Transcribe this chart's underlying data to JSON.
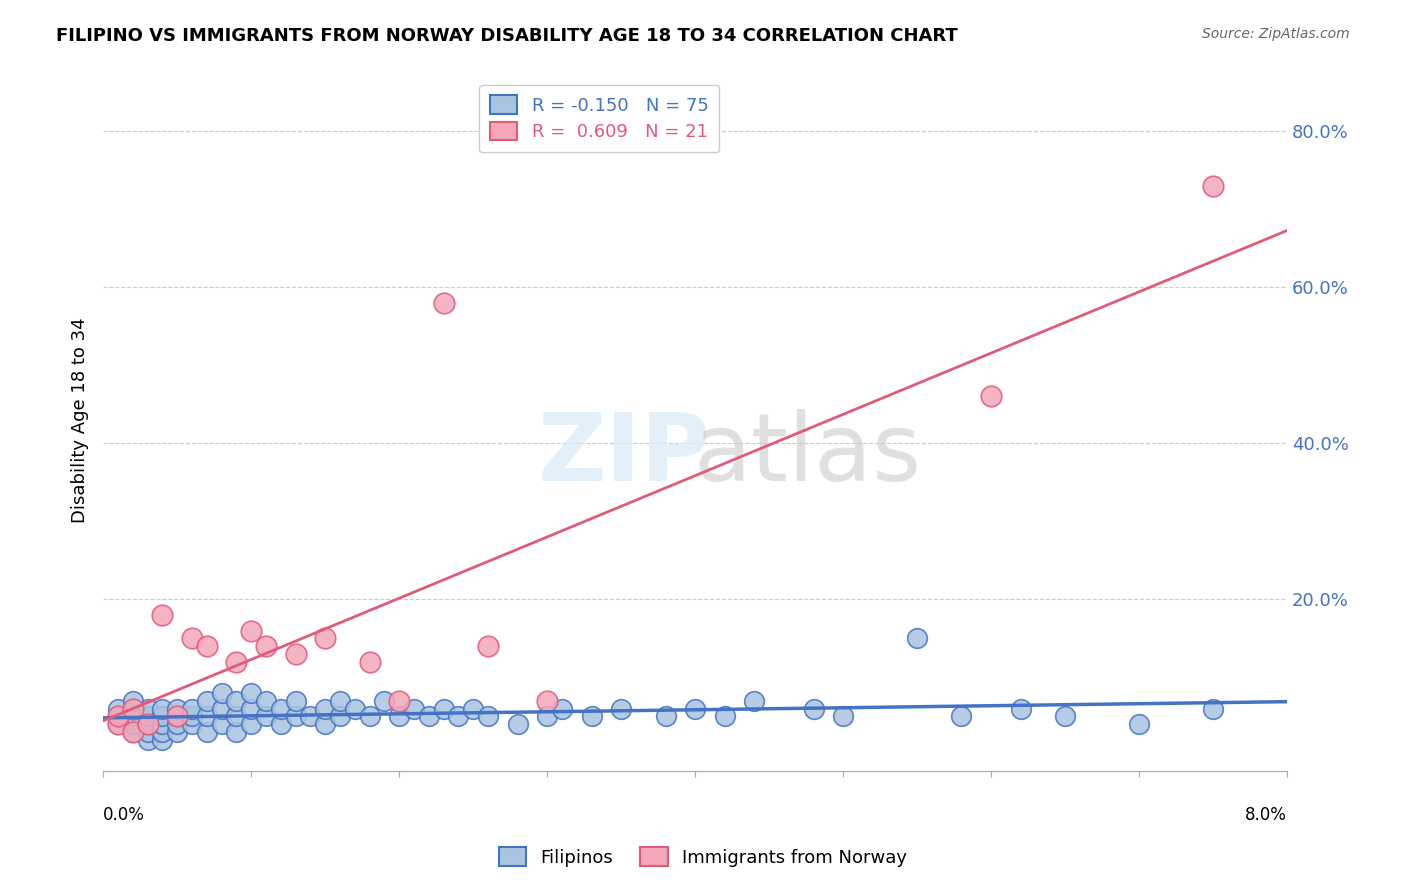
{
  "title": "FILIPINO VS IMMIGRANTS FROM NORWAY DISABILITY AGE 18 TO 34 CORRELATION CHART",
  "source": "Source: ZipAtlas.com",
  "ylabel": "Disability Age 18 to 34",
  "ytick_labels": [
    "",
    "20.0%",
    "40.0%",
    "60.0%",
    "80.0%"
  ],
  "ytick_values": [
    0.0,
    0.2,
    0.4,
    0.6,
    0.8
  ],
  "xlim": [
    0.0,
    0.08
  ],
  "ylim": [
    -0.02,
    0.88
  ],
  "filipinos_R": -0.15,
  "filipinos_N": 75,
  "norway_R": 0.609,
  "norway_N": 21,
  "blue_color": "#a8c4e0",
  "pink_color": "#f4a7b9",
  "blue_line_color": "#4472c4",
  "pink_line_color": "#e05a7a",
  "filipinos_x": [
    0.001,
    0.001,
    0.001,
    0.002,
    0.002,
    0.002,
    0.002,
    0.002,
    0.003,
    0.003,
    0.003,
    0.003,
    0.003,
    0.004,
    0.004,
    0.004,
    0.004,
    0.004,
    0.005,
    0.005,
    0.005,
    0.005,
    0.006,
    0.006,
    0.006,
    0.007,
    0.007,
    0.007,
    0.008,
    0.008,
    0.008,
    0.009,
    0.009,
    0.009,
    0.01,
    0.01,
    0.01,
    0.011,
    0.011,
    0.012,
    0.012,
    0.013,
    0.013,
    0.014,
    0.015,
    0.015,
    0.016,
    0.016,
    0.017,
    0.018,
    0.019,
    0.02,
    0.021,
    0.022,
    0.023,
    0.024,
    0.025,
    0.026,
    0.028,
    0.03,
    0.031,
    0.033,
    0.035,
    0.038,
    0.04,
    0.042,
    0.044,
    0.048,
    0.05,
    0.055,
    0.058,
    0.062,
    0.065,
    0.07,
    0.075
  ],
  "filipinos_y": [
    0.04,
    0.05,
    0.06,
    0.03,
    0.04,
    0.05,
    0.06,
    0.07,
    0.02,
    0.03,
    0.04,
    0.05,
    0.06,
    0.02,
    0.03,
    0.04,
    0.05,
    0.06,
    0.03,
    0.04,
    0.05,
    0.06,
    0.04,
    0.05,
    0.06,
    0.03,
    0.05,
    0.07,
    0.04,
    0.06,
    0.08,
    0.03,
    0.05,
    0.07,
    0.04,
    0.06,
    0.08,
    0.05,
    0.07,
    0.04,
    0.06,
    0.05,
    0.07,
    0.05,
    0.04,
    0.06,
    0.05,
    0.07,
    0.06,
    0.05,
    0.07,
    0.05,
    0.06,
    0.05,
    0.06,
    0.05,
    0.06,
    0.05,
    0.04,
    0.05,
    0.06,
    0.05,
    0.06,
    0.05,
    0.06,
    0.05,
    0.07,
    0.06,
    0.05,
    0.15,
    0.05,
    0.06,
    0.05,
    0.04,
    0.06
  ],
  "norway_x": [
    0.001,
    0.001,
    0.002,
    0.002,
    0.003,
    0.004,
    0.005,
    0.006,
    0.007,
    0.009,
    0.01,
    0.011,
    0.013,
    0.015,
    0.018,
    0.02,
    0.023,
    0.026,
    0.03,
    0.06,
    0.075
  ],
  "norway_y": [
    0.04,
    0.05,
    0.03,
    0.06,
    0.04,
    0.18,
    0.05,
    0.15,
    0.14,
    0.12,
    0.16,
    0.14,
    0.13,
    0.15,
    0.12,
    0.07,
    0.58,
    0.14,
    0.07,
    0.46,
    0.73
  ]
}
